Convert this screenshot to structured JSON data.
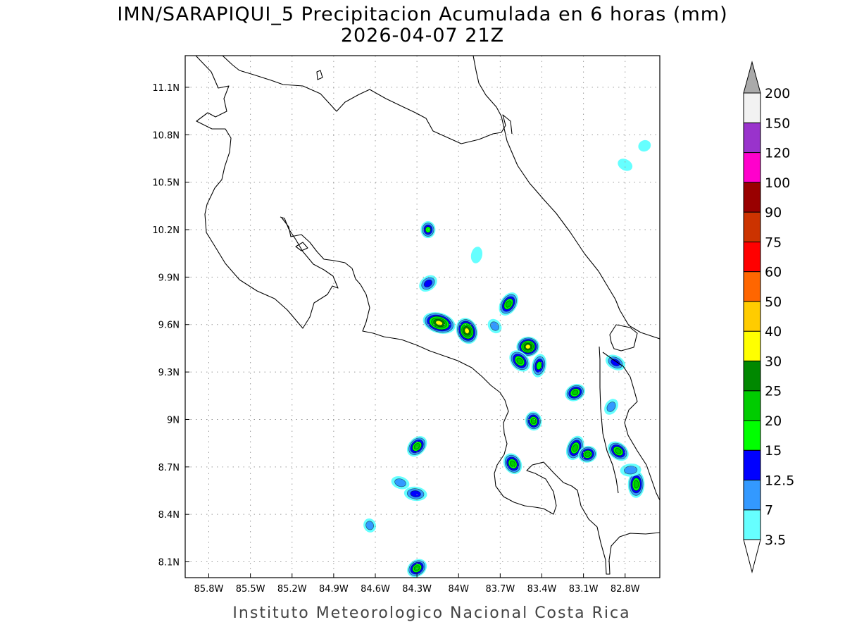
{
  "title": {
    "line1": "IMN/SARAPIQUI_5 Precipitacion Acumulada en 6 horas (mm)",
    "line2": "2026-04-07 21Z"
  },
  "footer": "Instituto Meteorologico Nacional Costa Rica",
  "axes": {
    "x_ticks": [
      {
        "label": "85.8W",
        "lon": -85.8
      },
      {
        "label": "85.5W",
        "lon": -85.5
      },
      {
        "label": "85.2W",
        "lon": -85.2
      },
      {
        "label": "84.9W",
        "lon": -84.9
      },
      {
        "label": "84.6W",
        "lon": -84.6
      },
      {
        "label": "84.3W",
        "lon": -84.3
      },
      {
        "label": "84W",
        "lon": -84.0
      },
      {
        "label": "83.7W",
        "lon": -83.7
      },
      {
        "label": "83.4W",
        "lon": -83.4
      },
      {
        "label": "83.1W",
        "lon": -83.1
      },
      {
        "label": "82.8W",
        "lon": -82.8
      }
    ],
    "y_ticks": [
      {
        "label": "11.1N",
        "lat": 11.1
      },
      {
        "label": "10.8N",
        "lat": 10.8
      },
      {
        "label": "10.5N",
        "lat": 10.5
      },
      {
        "label": "10.2N",
        "lat": 10.2
      },
      {
        "label": "9.9N",
        "lat": 9.9
      },
      {
        "label": "9.6N",
        "lat": 9.6
      },
      {
        "label": "9.3N",
        "lat": 9.3
      },
      {
        "label": "9N",
        "lat": 9.0
      },
      {
        "label": "8.7N",
        "lat": 8.7
      },
      {
        "label": "8.4N",
        "lat": 8.4
      },
      {
        "label": "8.1N",
        "lat": 8.1
      }
    ],
    "lon_range": [
      -85.97,
      -82.55
    ],
    "lat_range": [
      8.0,
      11.3
    ]
  },
  "legend": {
    "levels": [
      {
        "label": "3.5",
        "color": "#66ffff"
      },
      {
        "label": "7",
        "color": "#3399ff"
      },
      {
        "label": "12.5",
        "color": "#0000ff"
      },
      {
        "label": "15",
        "color": "#00ff00"
      },
      {
        "label": "20",
        "color": "#00cc00"
      },
      {
        "label": "25",
        "color": "#008800"
      },
      {
        "label": "30",
        "color": "#ffff00"
      },
      {
        "label": "40",
        "color": "#ffcc00"
      },
      {
        "label": "50",
        "color": "#ff6600"
      },
      {
        "label": "60",
        "color": "#ff0000"
      },
      {
        "label": "75",
        "color": "#cc3300"
      },
      {
        "label": "90",
        "color": "#990000"
      },
      {
        "label": "100",
        "color": "#ff00cc"
      },
      {
        "label": "120",
        "color": "#9933cc"
      },
      {
        "label": "150",
        "color": "#f2f2f2"
      },
      {
        "label": "200",
        "color": "#aaaaaa"
      }
    ]
  },
  "precip_cells": [
    {
      "lon": -84.22,
      "lat": 10.2,
      "peak_mm": 16
    },
    {
      "lon": -84.22,
      "lat": 9.86,
      "peak_mm": 14
    },
    {
      "lon": -84.14,
      "lat": 9.61,
      "peak_mm": 34
    },
    {
      "lon": -83.94,
      "lat": 9.56,
      "peak_mm": 36
    },
    {
      "lon": -83.64,
      "lat": 9.73,
      "peak_mm": 22
    },
    {
      "lon": -83.5,
      "lat": 9.46,
      "peak_mm": 33
    },
    {
      "lon": -83.56,
      "lat": 9.37,
      "peak_mm": 24
    },
    {
      "lon": -83.42,
      "lat": 9.34,
      "peak_mm": 15
    },
    {
      "lon": -83.16,
      "lat": 9.17,
      "peak_mm": 21
    },
    {
      "lon": -82.87,
      "lat": 9.36,
      "peak_mm": 13
    },
    {
      "lon": -83.46,
      "lat": 8.99,
      "peak_mm": 22
    },
    {
      "lon": -84.3,
      "lat": 8.83,
      "peak_mm": 22
    },
    {
      "lon": -84.31,
      "lat": 8.53,
      "peak_mm": 14
    },
    {
      "lon": -83.61,
      "lat": 8.72,
      "peak_mm": 24
    },
    {
      "lon": -83.16,
      "lat": 8.82,
      "peak_mm": 22
    },
    {
      "lon": -83.07,
      "lat": 8.78,
      "peak_mm": 22
    },
    {
      "lon": -82.85,
      "lat": 8.8,
      "peak_mm": 22
    },
    {
      "lon": -82.72,
      "lat": 8.59,
      "peak_mm": 22
    },
    {
      "lon": -84.3,
      "lat": 8.06,
      "peak_mm": 22
    },
    {
      "lon": -84.42,
      "lat": 8.6,
      "peak_mm": 8
    },
    {
      "lon": -84.64,
      "lat": 8.33,
      "peak_mm": 8
    },
    {
      "lon": -82.9,
      "lat": 9.08,
      "peak_mm": 8
    },
    {
      "lon": -82.76,
      "lat": 8.68,
      "peak_mm": 10
    },
    {
      "lon": -83.74,
      "lat": 9.59,
      "peak_mm": 8
    },
    {
      "lon": -83.87,
      "lat": 10.04,
      "peak_mm": 4
    },
    {
      "lon": -82.66,
      "lat": 10.73,
      "peak_mm": 4
    },
    {
      "lon": -82.8,
      "lat": 10.61,
      "peak_mm": 4
    }
  ]
}
